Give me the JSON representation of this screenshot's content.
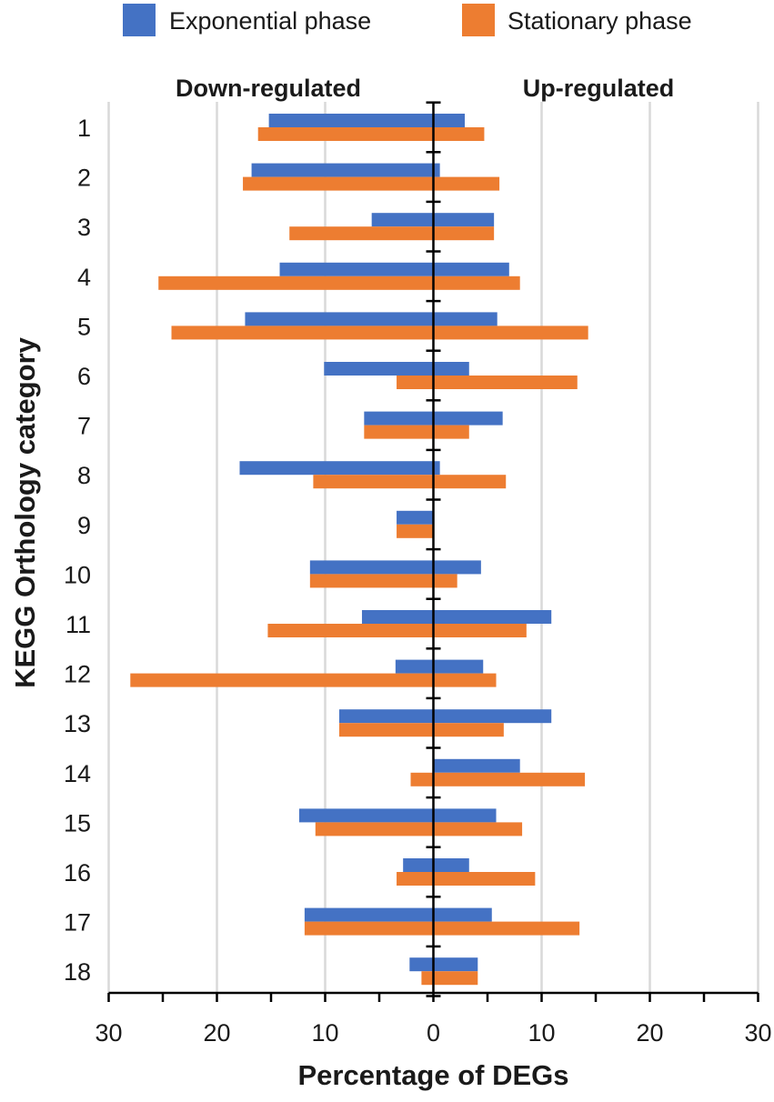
{
  "chart_data": {
    "type": "bar",
    "orientation": "horizontal-diverging",
    "title": "",
    "xlabel": "Percentage of DEGs",
    "ylabel": "KEGG Orthology category",
    "x_tick_values": [
      -30,
      -20,
      -10,
      0,
      10,
      20,
      30
    ],
    "x_tick_labels": [
      "30",
      "20",
      "10",
      "0",
      "10",
      "20",
      "30"
    ],
    "xlim": [
      -30,
      30
    ],
    "grid": true,
    "legend_position": "top",
    "region_labels": {
      "left": "Down-regulated",
      "right": "Up-regulated"
    },
    "categories": [
      "1",
      "2",
      "3",
      "4",
      "5",
      "6",
      "7",
      "8",
      "9",
      "10",
      "11",
      "12",
      "13",
      "14",
      "15",
      "16",
      "17",
      "18"
    ],
    "series": [
      {
        "name": "Exponential phase",
        "color": "#4472C4",
        "down": [
          15.2,
          16.8,
          5.7,
          14.2,
          17.4,
          10.1,
          6.4,
          17.9,
          3.4,
          11.4,
          6.6,
          3.5,
          8.7,
          0,
          12.4,
          2.8,
          11.9,
          2.2
        ],
        "up": [
          2.9,
          0.6,
          5.6,
          7.0,
          5.9,
          3.3,
          6.4,
          0.6,
          0,
          4.4,
          10.9,
          4.6,
          10.9,
          8.0,
          5.8,
          3.3,
          5.4,
          4.1
        ]
      },
      {
        "name": "Stationary phase",
        "color": "#ED7D31",
        "down": [
          16.2,
          17.6,
          13.3,
          25.4,
          24.2,
          3.4,
          6.4,
          11.1,
          3.4,
          11.4,
          15.3,
          28.0,
          8.7,
          2.1,
          10.9,
          3.4,
          11.9,
          1.1
        ],
        "up": [
          4.7,
          6.1,
          5.6,
          8.0,
          14.3,
          13.3,
          3.3,
          6.7,
          0,
          2.2,
          8.6,
          5.8,
          6.5,
          14.0,
          8.2,
          9.4,
          13.5,
          4.1
        ]
      }
    ]
  }
}
